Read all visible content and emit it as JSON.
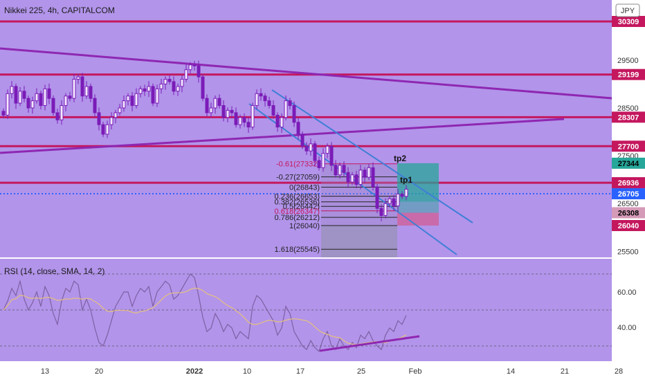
{
  "header": {
    "title": "Nikkei 225, 4h, CAPITALCOM",
    "currency": "JPY"
  },
  "colors": {
    "background": "#b294ea",
    "candle": "#7a1bb7",
    "level_line": "#c4175e",
    "level_label_bg": "#c4175e",
    "trendline": "#8e27b2",
    "channel": "#3f7fd6",
    "current_price": "#2962ff",
    "rsi_line": "#7e5fa3",
    "rsi_ma": "#e8c27a",
    "divergence": "#8e27b2",
    "tp_box": "#26a69a",
    "sl_box": "#d35a8f",
    "fib_box": "#8f8fa6"
  },
  "chart_data": [
    {
      "type": "candlestick",
      "title": "Nikkei 225, 4h, CAPITALCOM",
      "ylim": [
        25380,
        30420
      ],
      "x_tick_labels": [
        "13",
        "20",
        "2022",
        "10",
        "17",
        "25",
        "Feb",
        "14",
        "21",
        "28"
      ],
      "y_tick_labels": [
        25500,
        26500,
        27500,
        28500,
        29500
      ],
      "price_labels": [
        {
          "value": 30309,
          "kind": "level"
        },
        {
          "value": 29199,
          "kind": "level"
        },
        {
          "value": 28307,
          "kind": "level"
        },
        {
          "value": 27700,
          "kind": "level"
        },
        {
          "value": 27344,
          "kind": "target"
        },
        {
          "value": 26936,
          "kind": "level"
        },
        {
          "value": 26705,
          "kind": "current"
        },
        {
          "value": 26308,
          "kind": "stop"
        },
        {
          "value": 26040,
          "kind": "level"
        }
      ],
      "horizontal_levels": [
        30309,
        29199,
        28307,
        27700,
        26936
      ],
      "current_price": 26705,
      "fibonacci": [
        {
          "label": "-0.61(27332)",
          "value": 27332
        },
        {
          "label": "-0.27(27059)",
          "value": 27059
        },
        {
          "label": "0(26843)",
          "value": 26843
        },
        {
          "label": "0.236(26653)",
          "value": 26653
        },
        {
          "label": "0.382(26536)",
          "value": 26536
        },
        {
          "label": "0.5(26442)",
          "value": 26442
        },
        {
          "label": "0.618(26347)",
          "value": 26347
        },
        {
          "label": "0.786(26212)",
          "value": 26212
        },
        {
          "label": "1(26040)",
          "value": 26040
        },
        {
          "label": "1.618(25545)",
          "value": 25545
        }
      ],
      "annotations": [
        "tp2",
        "tp1"
      ],
      "series": [
        {
          "name": "Nikkei 225",
          "values": [
            28350,
            28800,
            28950,
            28600,
            28850,
            28700,
            28500,
            28650,
            28800,
            28550,
            28900,
            28700,
            28400,
            28250,
            28550,
            28750,
            28700,
            29100,
            29150,
            28750,
            28950,
            28700,
            28400,
            28150,
            27950,
            28150,
            28300,
            28400,
            28500,
            28650,
            28750,
            28550,
            28800,
            28900,
            28850,
            28950,
            28600,
            28900,
            29000,
            29100,
            29050,
            28850,
            28950,
            29100,
            29300,
            29400,
            29380,
            29150,
            28700,
            28400,
            28500,
            28700,
            28550,
            28300,
            28450,
            28400,
            28150,
            28300,
            28200,
            28100,
            28550,
            28800,
            28750,
            28650,
            28550,
            28350,
            28100,
            28300,
            28650,
            28550,
            28200,
            27950,
            27700,
            27600,
            27750,
            27400,
            27250,
            27550,
            27700,
            27300,
            27100,
            27300,
            27150,
            26950,
            27100,
            26900,
            27200,
            27050,
            27250,
            26850,
            26400,
            26250,
            26500,
            26600,
            26450,
            26700,
            26650,
            26800
          ]
        },
        {
          "name": "RSI (14, close, SMA, 14, 2)",
          "ylim": [
            16,
            76
          ],
          "y_tick_labels": [
            40.0,
            60.0
          ],
          "values": [
            50,
            55,
            62,
            58,
            66,
            56,
            50,
            54,
            60,
            52,
            63,
            58,
            48,
            42,
            55,
            62,
            60,
            66,
            64,
            50,
            56,
            50,
            40,
            32,
            30,
            36,
            44,
            52,
            56,
            60,
            60,
            52,
            58,
            62,
            60,
            63,
            52,
            60,
            63,
            66,
            64,
            56,
            58,
            62,
            66,
            70,
            68,
            58,
            46,
            38,
            40,
            48,
            44,
            38,
            42,
            40,
            34,
            38,
            36,
            34,
            52,
            58,
            56,
            52,
            48,
            44,
            36,
            40,
            52,
            48,
            38,
            34,
            30,
            28,
            33,
            29,
            27,
            34,
            38,
            30,
            28,
            34,
            30,
            28,
            32,
            29,
            36,
            34,
            38,
            33,
            30,
            28,
            36,
            40,
            38,
            44,
            42,
            47
          ]
        }
      ]
    }
  ],
  "rsi": {
    "label": "RSI (14, close, SMA, 14, 2)",
    "ticks": [
      "60.00",
      "40.00"
    ]
  }
}
